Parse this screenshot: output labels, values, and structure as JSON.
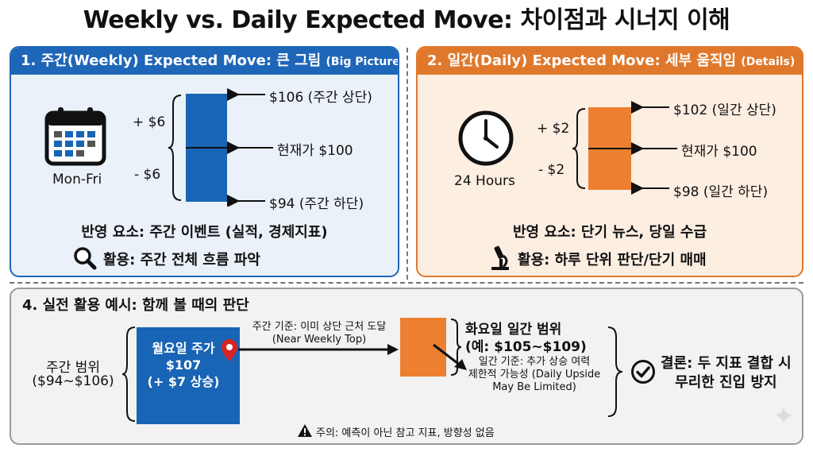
{
  "title": "Weekly vs. Daily Expected Move: 차이점과 시너지 이해",
  "colors": {
    "blue": "#1864b5",
    "orange": "#ec8030",
    "gray": "#9a9a9a",
    "red": "#d72424"
  },
  "panel1": {
    "header_main": "1. 주간(Weekly) Expected Move: 큰 그림",
    "header_sub": "(Big Picture)",
    "icon_label": "Mon-Fri",
    "plus": "+ $6",
    "minus": "- $6",
    "top_label": "$106 (주간 상단)",
    "mid_label": "현재가 $100",
    "bottom_label": "$94 (주간 하단)",
    "factors": "반영 요소: 주간 이벤트 (실적, 경제지표)",
    "usage": "활용: 주간 전체 흐름 파악"
  },
  "panel2": {
    "header_main": "2. 일간(Daily) Expected Move: 세부 움직임",
    "header_sub": "(Details)",
    "icon_label": "24 Hours",
    "plus": "+ $2",
    "minus": "- $2",
    "top_label": "$102 (일간 상단)",
    "mid_label": "현재가 $100",
    "bottom_label": "$98 (일간 하단)",
    "factors": "반영 요소: 단기 뉴스, 당일 수급",
    "usage": "활용: 하루 단위 판단/단기 매매"
  },
  "panel4": {
    "header": "4. 실전 활용 예시: 함께 볼 때의 판단",
    "weekly_range_line1": "주간 범위",
    "weekly_range_line2": "($94~$106)",
    "monday_line1": "월요일 주가",
    "monday_line2": "$107",
    "monday_line3": "(+ $7 상승)",
    "arrow_line1": "주간 기준: 이미 상단 근처 도달",
    "arrow_line2": "(Near Weekly Top)",
    "tuesday_line1": "화요일 일간 범위",
    "tuesday_line2": "(예: $105~$109)",
    "daily_note_line1": "일간 기준: 추가 상승 여력",
    "daily_note_line2": "제한적 가능성 (Daily Upside",
    "daily_note_line3": "May Be Limited)",
    "conclusion_line1": "결론: 두 지표 결합 시",
    "conclusion_line2": "무리한 진입 방지",
    "caution": "주의: 예측이 아닌 참고 지표, 방향성 없음"
  }
}
